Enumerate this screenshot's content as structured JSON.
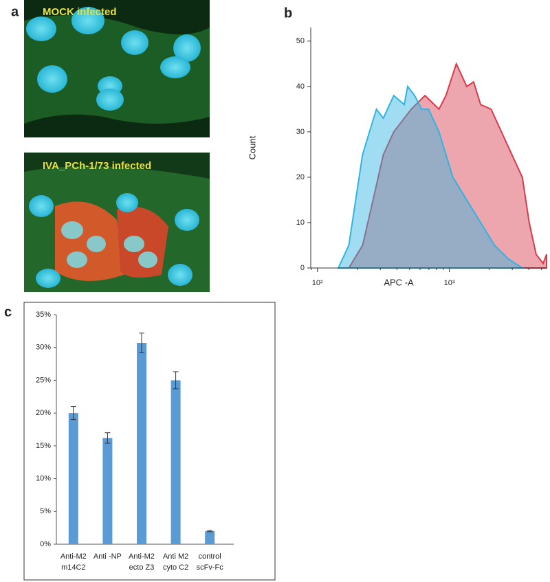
{
  "panel_labels": [
    "a",
    "b",
    "c"
  ],
  "images": [
    {
      "caption": "MOCK infected"
    },
    {
      "caption": "IVA_PCh-1/73 infected"
    }
  ],
  "chart_data": [
    {
      "type": "area",
      "xlabel": "APC -A",
      "ylabel": "Count",
      "xscale": "log",
      "xlim": [
        89,
        5456
      ],
      "ylim": [
        0,
        53
      ],
      "xticks": [
        {
          "value": 100,
          "label": "10²"
        },
        {
          "value": 1000,
          "label": "10³"
        }
      ],
      "yticks": [
        0,
        10,
        20,
        30,
        40,
        50
      ],
      "series": [
        {
          "color": "#d83a4a",
          "x": [
            173,
            220,
            264,
            316,
            379,
            455,
            514,
            654,
            834,
            942,
            1129,
            1355,
            1528,
            1726,
            2070,
            2483,
            2976,
            3573,
            4030,
            4548,
            5140,
            5456
          ],
          "values": [
            0,
            5,
            15,
            25,
            30,
            33,
            35,
            38,
            35,
            38,
            45,
            40,
            41,
            36,
            35,
            30,
            25,
            20,
            10,
            3,
            1,
            3
          ]
        },
        {
          "color": "#2fb3e3",
          "x": [
            144,
            173,
            195,
            220,
            248,
            280,
            316,
            379,
            455,
            483,
            546,
            615,
            695,
            834,
            942,
            1062,
            1355,
            1726,
            2198,
            2801,
            3573
          ],
          "values": [
            0,
            5,
            15,
            25,
            30,
            35,
            33,
            38,
            36,
            40,
            38,
            35,
            35,
            30,
            25,
            20,
            15,
            10,
            5,
            2,
            0
          ]
        }
      ]
    },
    {
      "type": "bar",
      "color": "#5b9bd5",
      "categories": [
        [
          "Anti-M2",
          "m14C2"
        ],
        [
          "Anti -NP"
        ],
        [
          "Anti-M2",
          "ecto Z3"
        ],
        [
          "Anti M2",
          "cyto C2"
        ],
        [
          "control",
          "scFv-Fc"
        ]
      ],
      "values": [
        20,
        16.2,
        30.7,
        25,
        2
      ],
      "errors": [
        1,
        0.8,
        1.5,
        1.3,
        0.1
      ],
      "ylim": [
        0,
        35
      ],
      "yticks": [
        {
          "value": 0,
          "label": "0%"
        },
        {
          "value": 5,
          "label": "5%"
        },
        {
          "value": 10,
          "label": "10%"
        },
        {
          "value": 15,
          "label": "15%"
        },
        {
          "value": 20,
          "label": "20%"
        },
        {
          "value": 25,
          "label": "25%"
        },
        {
          "value": 30,
          "label": "30%"
        },
        {
          "value": 35,
          "label": "35%"
        }
      ]
    }
  ]
}
